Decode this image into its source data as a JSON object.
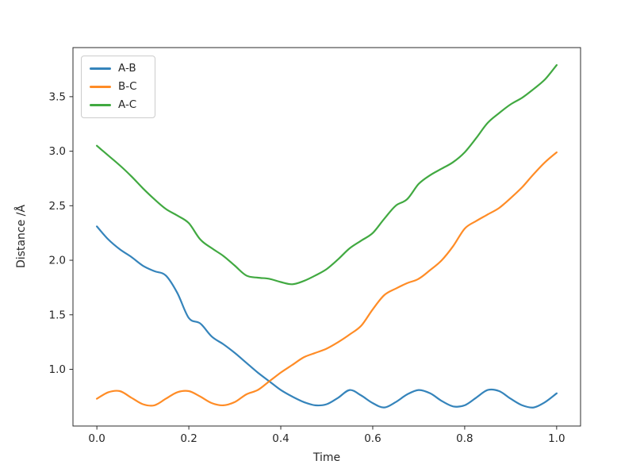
{
  "chart_data": {
    "type": "line",
    "title": "",
    "xlabel": "Time",
    "ylabel": "Distance /Å",
    "xlim": [
      -0.052,
      1.052
    ],
    "ylim": [
      0.48,
      3.95
    ],
    "grid": false,
    "legend_position": "upper-left",
    "axis_color": "#2b2b2b",
    "x_ticks": [
      0.0,
      0.2,
      0.4,
      0.6,
      0.8,
      1.0
    ],
    "x_tick_labels": [
      "0.0",
      "0.2",
      "0.4",
      "0.6",
      "0.8",
      "1.0"
    ],
    "y_ticks": [
      1.0,
      1.5,
      2.0,
      2.5,
      3.0,
      3.5
    ],
    "y_tick_labels": [
      "1.0",
      "1.5",
      "2.0",
      "2.5",
      "3.0",
      "3.5"
    ],
    "x": [
      0.0,
      0.025,
      0.05,
      0.075,
      0.1,
      0.125,
      0.15,
      0.175,
      0.2,
      0.225,
      0.25,
      0.275,
      0.3,
      0.325,
      0.35,
      0.375,
      0.4,
      0.425,
      0.45,
      0.475,
      0.5,
      0.525,
      0.55,
      0.575,
      0.6,
      0.625,
      0.65,
      0.675,
      0.7,
      0.725,
      0.75,
      0.775,
      0.8,
      0.825,
      0.85,
      0.875,
      0.9,
      0.925,
      0.95,
      0.975,
      1.0
    ],
    "series": [
      {
        "name": "A-B",
        "color": "#1f77b4",
        "values": [
          2.31,
          2.19,
          2.1,
          2.03,
          1.95,
          1.9,
          1.86,
          1.7,
          1.47,
          1.42,
          1.3,
          1.23,
          1.15,
          1.06,
          0.97,
          0.89,
          0.81,
          0.75,
          0.7,
          0.67,
          0.68,
          0.74,
          0.81,
          0.76,
          0.69,
          0.65,
          0.7,
          0.77,
          0.81,
          0.78,
          0.71,
          0.66,
          0.67,
          0.74,
          0.81,
          0.8,
          0.73,
          0.67,
          0.65,
          0.7,
          0.78
        ]
      },
      {
        "name": "B-C",
        "color": "#ff7f0e",
        "values": [
          0.73,
          0.79,
          0.8,
          0.74,
          0.68,
          0.67,
          0.73,
          0.79,
          0.8,
          0.75,
          0.69,
          0.67,
          0.7,
          0.77,
          0.81,
          0.89,
          0.97,
          1.04,
          1.11,
          1.15,
          1.19,
          1.25,
          1.32,
          1.4,
          1.55,
          1.68,
          1.74,
          1.79,
          1.83,
          1.91,
          2.0,
          2.13,
          2.29,
          2.36,
          2.42,
          2.48,
          2.57,
          2.67,
          2.79,
          2.9,
          2.99
        ]
      },
      {
        "name": "A-C",
        "color": "#2ca02c",
        "values": [
          3.05,
          2.96,
          2.87,
          2.77,
          2.66,
          2.56,
          2.47,
          2.41,
          2.34,
          2.19,
          2.11,
          2.04,
          1.95,
          1.86,
          1.84,
          1.83,
          1.8,
          1.78,
          1.81,
          1.86,
          1.92,
          2.01,
          2.11,
          2.18,
          2.25,
          2.38,
          2.5,
          2.56,
          2.7,
          2.78,
          2.84,
          2.9,
          2.99,
          3.12,
          3.26,
          3.35,
          3.43,
          3.49,
          3.57,
          3.66,
          3.79
        ]
      }
    ]
  }
}
